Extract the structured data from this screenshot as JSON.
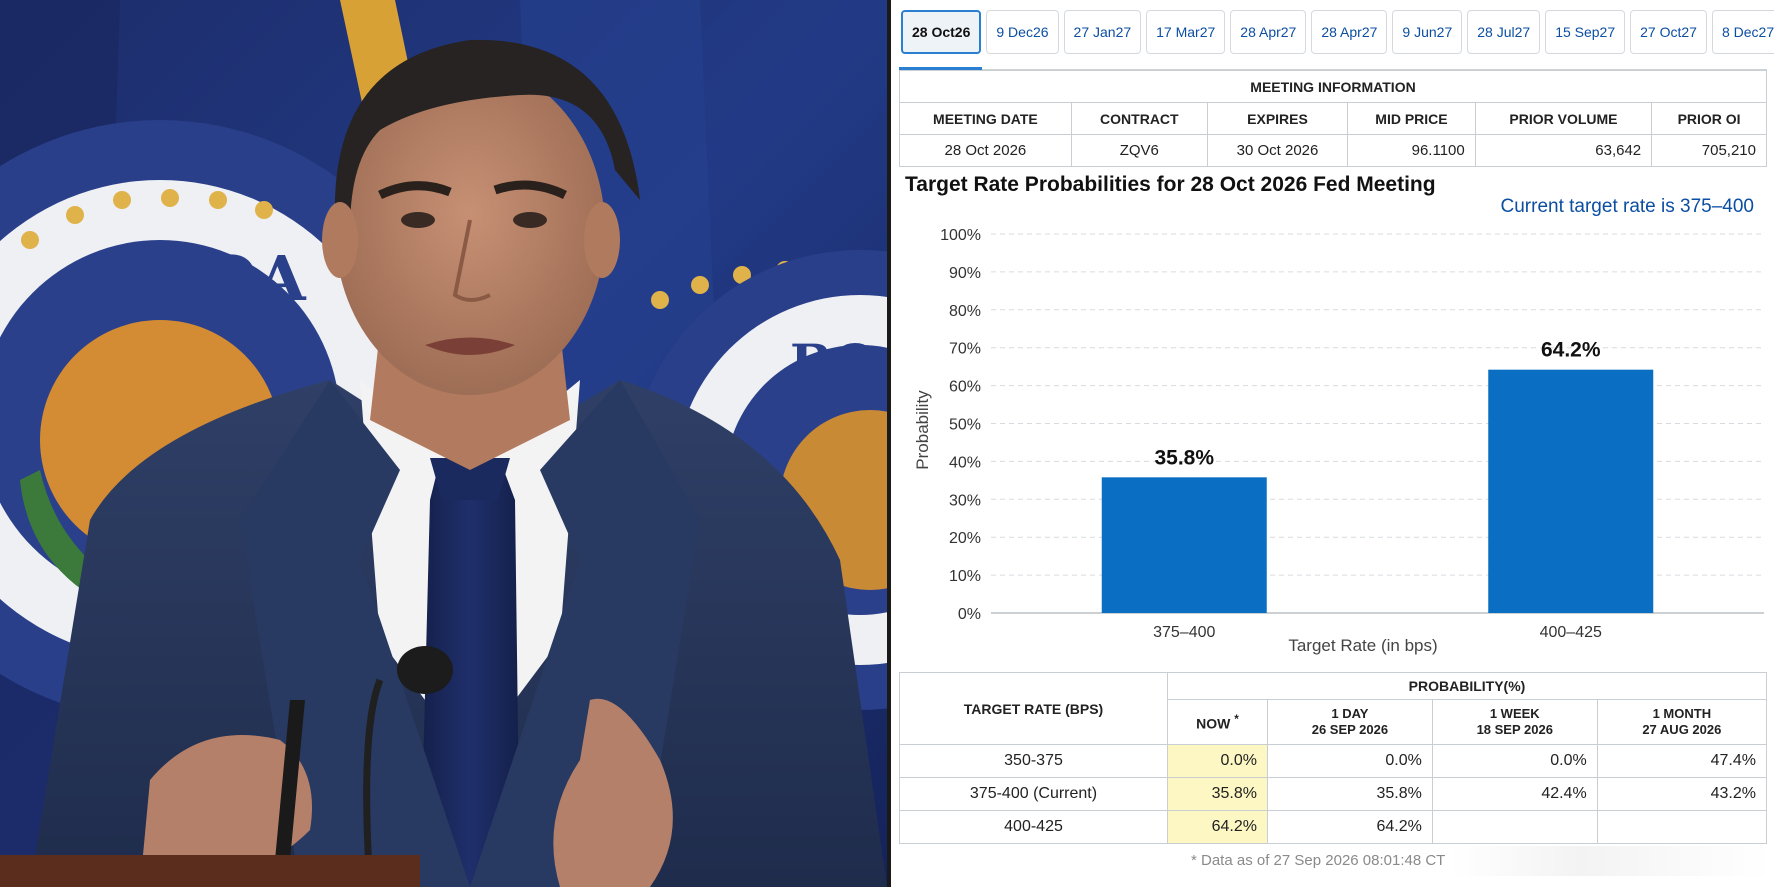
{
  "photo": {
    "seal_text_left": "BOA",
    "seal_text_left_2": "RO",
    "seal_text_right": "BO"
  },
  "tabs": [
    {
      "label": "28 Oct26",
      "active": true
    },
    {
      "label": "9 Dec26"
    },
    {
      "label": "27 Jan27"
    },
    {
      "label": "17 Mar27"
    },
    {
      "label": "28 Apr27"
    },
    {
      "label": "28 Apr27"
    },
    {
      "label": "9 Jun27"
    },
    {
      "label": "28 Jul27"
    },
    {
      "label": "15 Sep27"
    },
    {
      "label": "27 Oct27"
    },
    {
      "label": "8 Dec27"
    }
  ],
  "meeting_info": {
    "header": "MEETING INFORMATION",
    "columns": [
      "MEETING DATE",
      "CONTRACT",
      "EXPIRES",
      "MID PRICE",
      "PRIOR VOLUME",
      "PRIOR OI"
    ],
    "row": [
      "28 Oct 2026",
      "ZQV6",
      "30 Oct 2026",
      "96.1100",
      "63,642",
      "705,210"
    ]
  },
  "chart_title": "Target Rate Probabilities for 28 Oct 2026 Fed Meeting",
  "current_rate_text": "Current target rate is 375–400",
  "chart_data": {
    "type": "bar",
    "categories": [
      "375–400",
      "400–425"
    ],
    "values": [
      35.8,
      64.2
    ],
    "data_labels": [
      "35.8%",
      "64.2%"
    ],
    "xlabel": "Target Rate (in bps)",
    "ylabel": "Probability",
    "ylim": [
      0,
      100
    ],
    "yticks": [
      "0%",
      "10%",
      "20%",
      "30%",
      "40%",
      "50%",
      "60%",
      "70%",
      "80%",
      "90%",
      "100%"
    ],
    "grid": true,
    "bar_color": "#0a6fc2"
  },
  "prob_table": {
    "target_header": "TARGET RATE (BPS)",
    "prob_header": "PROBABILITY(%)",
    "now_label": "NOW",
    "now_mark": "*",
    "col_1day": "1 DAY",
    "col_1day_date": "26 SEP 2026",
    "col_1week": "1 WEEK",
    "col_1week_date": "18 SEP 2026",
    "col_1month": "1 MONTH",
    "col_1month_date": "27 AUG 2026",
    "rows": [
      {
        "rate": "350-375",
        "now": "0.0%",
        "day": "0.0%",
        "week": "0.0%",
        "month": "47.4%"
      },
      {
        "rate": "375-400 (Current)",
        "now": "35.8%",
        "day": "35.8%",
        "week": "42.4%",
        "month": "43.2%"
      },
      {
        "rate": "400-425",
        "now": "64.2%",
        "day": "64.2%",
        "week": "",
        "month": ""
      }
    ]
  },
  "footnote": "* Data as of 27 Sep 2026 08:01:48 CT",
  "colors": {
    "accent": "#2b7fd1",
    "link": "#0b4ea2",
    "bar": "#0a6fc2",
    "now_highlight": "#fdf7c3"
  }
}
